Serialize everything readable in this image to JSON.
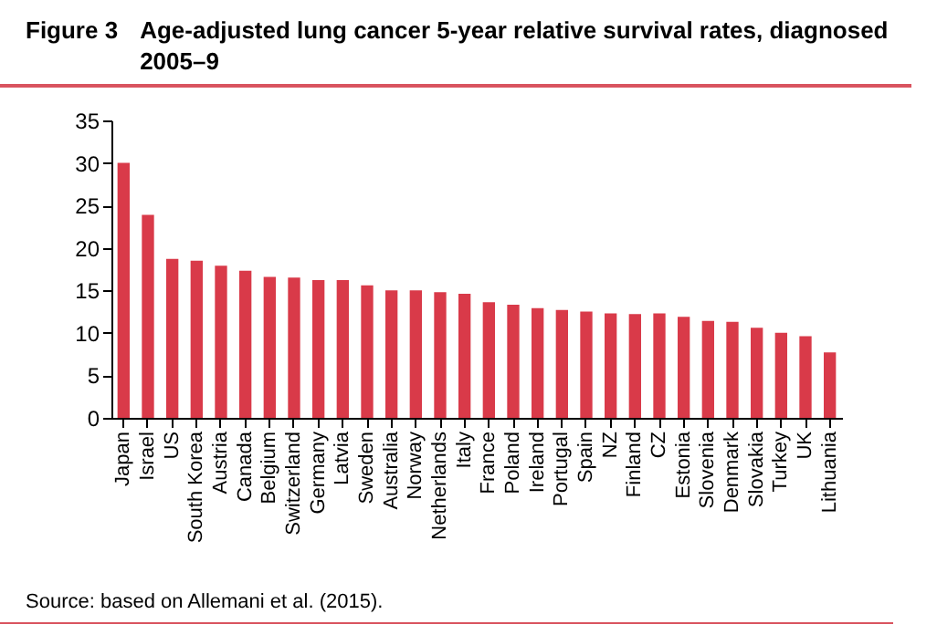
{
  "chart_data": {
    "type": "bar",
    "title": "Age-adjusted lung cancer 5-year relative survival rates, diagnosed 2005–9",
    "annotations": [
      "Figure 3",
      "Source: based on Allemani et al. (2015)."
    ],
    "categories": [
      "Japan",
      "Israel",
      "US",
      "South Korea",
      "Austria",
      "Canada",
      "Belgium",
      "Switzerland",
      "Germany",
      "Latvia",
      "Sweden",
      "Australia",
      "Norway",
      "Netherlands",
      "Italy",
      "France",
      "Poland",
      "Ireland",
      "Portugal",
      "Spain",
      "NZ",
      "Finland",
      "CZ",
      "Estonia",
      "Slovenia",
      "Denmark",
      "Slovakia",
      "Turkey",
      "UK",
      "Lithuania"
    ],
    "values": [
      30.0,
      23.9,
      18.7,
      18.5,
      17.9,
      17.3,
      16.6,
      16.5,
      16.2,
      16.2,
      15.6,
      15.0,
      15.0,
      14.8,
      14.6,
      13.6,
      13.3,
      12.9,
      12.7,
      12.5,
      12.3,
      12.2,
      12.3,
      11.9,
      11.4,
      11.3,
      10.6,
      10.0,
      9.6,
      7.7
    ],
    "color": "#d93a49",
    "ylim": [
      0,
      35
    ],
    "yticks": [
      0,
      5,
      10,
      15,
      20,
      25,
      30,
      35
    ],
    "grid": false
  }
}
